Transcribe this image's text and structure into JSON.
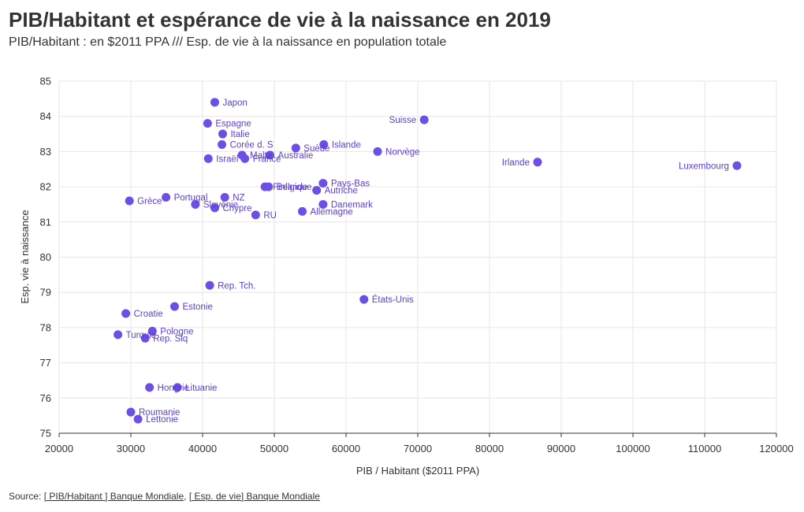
{
  "header": {
    "title": "PIB/Habitant et espérance de vie à la naissance en 2019",
    "subtitle": "PIB/Habitant : en $2011 PPA /// Esp. de vie à la naissance en population totale"
  },
  "footer": {
    "source_prefix": "Source: ",
    "source_link_1": "[ PIB/Habitant ] Banque Mondiale",
    "separator": ", ",
    "source_link_2": "[ Esp. de vie] Banque Mondiale"
  },
  "colors": {
    "point": "#6b4fe6",
    "label": "#5a3fd1",
    "grid": "#e6e6e6"
  },
  "chart_data": {
    "type": "scatter",
    "xlabel": "PIB / Habitant ($2011 PPA)",
    "ylabel": "Esp. vie à naissance",
    "xlim": [
      20000,
      120000
    ],
    "ylim": [
      75,
      85
    ],
    "xticks": [
      20000,
      30000,
      40000,
      50000,
      60000,
      70000,
      80000,
      90000,
      100000,
      110000,
      120000
    ],
    "yticks": [
      75,
      76,
      77,
      78,
      79,
      80,
      81,
      82,
      83,
      84,
      85
    ],
    "grid": true,
    "points": [
      {
        "label": "Japon",
        "x": 41700,
        "y": 84.4
      },
      {
        "label": "Espagne",
        "x": 40700,
        "y": 83.8
      },
      {
        "label": "Italie",
        "x": 42800,
        "y": 83.5
      },
      {
        "label": "Corée d. S",
        "x": 42700,
        "y": 83.2
      },
      {
        "label": "Israël",
        "x": 40800,
        "y": 82.8
      },
      {
        "label": "Malte",
        "x": 45500,
        "y": 82.9
      },
      {
        "label": "France",
        "x": 45900,
        "y": 82.8
      },
      {
        "label": "Australie",
        "x": 49400,
        "y": 82.9
      },
      {
        "label": "Suède",
        "x": 53000,
        "y": 83.1
      },
      {
        "label": "Islande",
        "x": 56900,
        "y": 83.2
      },
      {
        "label": "Suisse",
        "x": 70900,
        "y": 83.9
      },
      {
        "label": "Norvège",
        "x": 64400,
        "y": 83.0
      },
      {
        "label": "Irlande",
        "x": 86700,
        "y": 82.7
      },
      {
        "label": "Luxembourg",
        "x": 114500,
        "y": 82.6
      },
      {
        "label": "Grèce",
        "x": 29800,
        "y": 81.6
      },
      {
        "label": "Portugal",
        "x": 34900,
        "y": 81.7
      },
      {
        "label": "NZ",
        "x": 43100,
        "y": 81.7
      },
      {
        "label": "Slovénie",
        "x": 39000,
        "y": 81.5
      },
      {
        "label": "Chypre",
        "x": 41700,
        "y": 81.4
      },
      {
        "label": "RU",
        "x": 47400,
        "y": 81.2
      },
      {
        "label": "Finlande",
        "x": 48700,
        "y": 82.0
      },
      {
        "label": "Belgique",
        "x": 49200,
        "y": 82.0
      },
      {
        "label": "Pays-Bas",
        "x": 56800,
        "y": 82.1
      },
      {
        "label": "Autriche",
        "x": 55900,
        "y": 81.9
      },
      {
        "label": "Danemark",
        "x": 56800,
        "y": 81.5
      },
      {
        "label": "Allemagne",
        "x": 53900,
        "y": 81.3
      },
      {
        "label": "Rep. Tch.",
        "x": 41000,
        "y": 79.2
      },
      {
        "label": "États-Unis",
        "x": 62500,
        "y": 78.8
      },
      {
        "label": "Estonie",
        "x": 36100,
        "y": 78.6
      },
      {
        "label": "Croatie",
        "x": 29300,
        "y": 78.4
      },
      {
        "label": "Pologne",
        "x": 33000,
        "y": 77.9
      },
      {
        "label": "Turquie",
        "x": 28200,
        "y": 77.8
      },
      {
        "label": "Rep. Slq",
        "x": 32000,
        "y": 77.7
      },
      {
        "label": "Hongrie",
        "x": 32600,
        "y": 76.3
      },
      {
        "label": "Lituanie",
        "x": 36500,
        "y": 76.3
      },
      {
        "label": "Roumanie",
        "x": 30000,
        "y": 75.6
      },
      {
        "label": "Lettonie",
        "x": 31000,
        "y": 75.4
      }
    ]
  }
}
